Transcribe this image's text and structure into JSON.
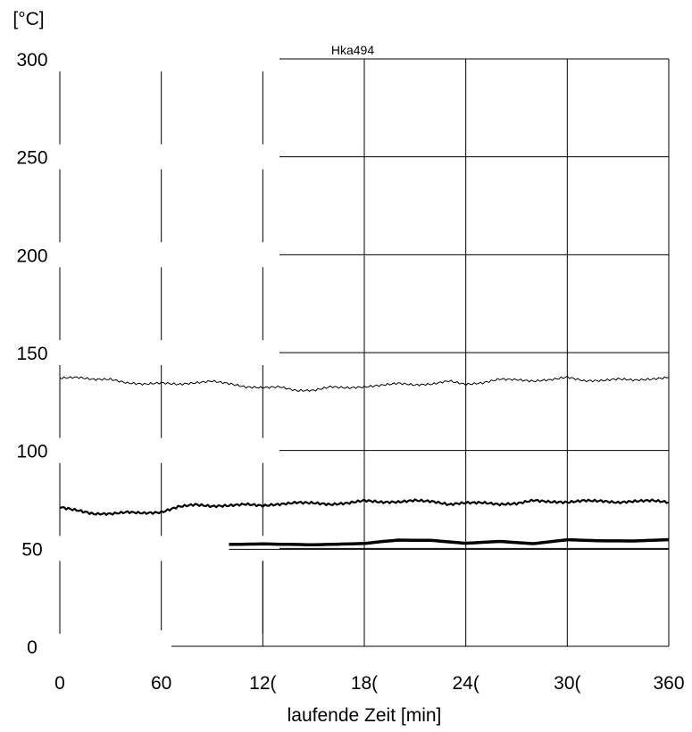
{
  "chart_data": {
    "type": "line",
    "title": "Hka494",
    "xlabel": "laufende Zeit [min]",
    "ylabel": "[°C]",
    "xlim": [
      0,
      360
    ],
    "ylim": [
      0,
      300
    ],
    "grid": true,
    "x_ticks": [
      "0",
      "60",
      "12(",
      "18(",
      "24(",
      "30(",
      "360"
    ],
    "y_ticks": [
      "0",
      "50",
      "100",
      "150",
      "200",
      "250",
      "300"
    ],
    "series": [
      {
        "style": "thin",
        "points": [
          [
            0,
            137
          ],
          [
            10,
            138
          ],
          [
            20,
            136
          ],
          [
            30,
            136
          ],
          [
            40,
            135
          ],
          [
            50,
            134
          ],
          [
            60,
            134
          ],
          [
            70,
            134
          ],
          [
            80,
            135
          ],
          [
            90,
            135
          ],
          [
            100,
            134
          ],
          [
            110,
            133
          ],
          [
            120,
            132
          ],
          [
            130,
            132
          ],
          [
            140,
            131
          ],
          [
            150,
            131
          ],
          [
            160,
            132
          ],
          [
            170,
            132
          ],
          [
            180,
            133
          ],
          [
            190,
            133
          ],
          [
            200,
            134
          ],
          [
            210,
            134
          ],
          [
            220,
            134
          ],
          [
            230,
            135
          ],
          [
            240,
            134
          ],
          [
            250,
            135
          ],
          [
            260,
            136
          ],
          [
            270,
            136
          ],
          [
            280,
            136
          ],
          [
            290,
            136
          ],
          [
            300,
            137
          ],
          [
            310,
            136
          ],
          [
            320,
            136
          ],
          [
            330,
            136
          ],
          [
            340,
            136
          ],
          [
            350,
            137
          ],
          [
            360,
            137
          ]
        ]
      },
      {
        "style": "medium",
        "points": [
          [
            0,
            71
          ],
          [
            10,
            69
          ],
          [
            20,
            68
          ],
          [
            30,
            68
          ],
          [
            40,
            68
          ],
          [
            50,
            68
          ],
          [
            60,
            69
          ],
          [
            70,
            71
          ],
          [
            80,
            72
          ],
          [
            90,
            72
          ],
          [
            100,
            72
          ],
          [
            110,
            72
          ],
          [
            120,
            72
          ],
          [
            130,
            73
          ],
          [
            140,
            73
          ],
          [
            150,
            73
          ],
          [
            160,
            73
          ],
          [
            170,
            73
          ],
          [
            180,
            74
          ],
          [
            190,
            74
          ],
          [
            200,
            74
          ],
          [
            210,
            74
          ],
          [
            220,
            74
          ],
          [
            230,
            73
          ],
          [
            240,
            73
          ],
          [
            250,
            73
          ],
          [
            260,
            73
          ],
          [
            270,
            73
          ],
          [
            280,
            74
          ],
          [
            290,
            74
          ],
          [
            300,
            74
          ],
          [
            310,
            74
          ],
          [
            320,
            74
          ],
          [
            330,
            74
          ],
          [
            340,
            74
          ],
          [
            350,
            74
          ],
          [
            360,
            74
          ]
        ]
      },
      {
        "style": "thick",
        "points": [
          [
            100,
            52
          ],
          [
            120,
            52
          ],
          [
            150,
            52
          ],
          [
            180,
            53
          ],
          [
            190,
            53
          ],
          [
            200,
            54
          ],
          [
            220,
            54
          ],
          [
            240,
            53
          ],
          [
            260,
            53
          ],
          [
            280,
            53
          ],
          [
            300,
            54
          ],
          [
            320,
            54
          ],
          [
            340,
            54
          ],
          [
            360,
            54
          ]
        ]
      },
      {
        "style": "hairline",
        "points": [
          [
            100,
            49.5
          ],
          [
            360,
            49.5
          ]
        ]
      }
    ]
  }
}
